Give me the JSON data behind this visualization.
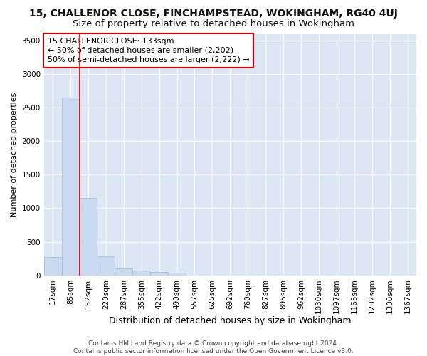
{
  "title1": "15, CHALLENOR CLOSE, FINCHAMPSTEAD, WOKINGHAM, RG40 4UJ",
  "title2": "Size of property relative to detached houses in Wokingham",
  "xlabel": "Distribution of detached houses by size in Wokingham",
  "ylabel": "Number of detached properties",
  "footnote": "Contains HM Land Registry data © Crown copyright and database right 2024.\nContains public sector information licensed under the Open Government Licence v3.0.",
  "bin_labels": [
    "17sqm",
    "85sqm",
    "152sqm",
    "220sqm",
    "287sqm",
    "355sqm",
    "422sqm",
    "490sqm",
    "557sqm",
    "625sqm",
    "692sqm",
    "760sqm",
    "827sqm",
    "895sqm",
    "962sqm",
    "1030sqm",
    "1097sqm",
    "1165sqm",
    "1232sqm",
    "1300sqm",
    "1367sqm"
  ],
  "bar_values": [
    270,
    2650,
    1150,
    280,
    100,
    75,
    50,
    40,
    0,
    0,
    0,
    0,
    0,
    0,
    0,
    0,
    0,
    0,
    0,
    0,
    0
  ],
  "bar_color": "#c9d9f0",
  "bar_edge_color": "#a0b8d8",
  "ylim": [
    0,
    3600
  ],
  "yticks": [
    0,
    500,
    1000,
    1500,
    2000,
    2500,
    3000,
    3500
  ],
  "red_line_x": 1.5,
  "annotation_text": "15 CHALLENOR CLOSE: 133sqm\n← 50% of detached houses are smaller (2,202)\n50% of semi-detached houses are larger (2,222) →",
  "annotation_box_color": "#ffffff",
  "annotation_box_edge": "#cc0000",
  "background_color": "#dde6f5",
  "grid_color": "#ffffff",
  "fig_background": "#ffffff",
  "title1_fontsize": 10,
  "title2_fontsize": 9.5,
  "xlabel_fontsize": 9,
  "ylabel_fontsize": 8,
  "tick_fontsize": 7.5,
  "annotation_fontsize": 8,
  "footnote_fontsize": 6.5
}
